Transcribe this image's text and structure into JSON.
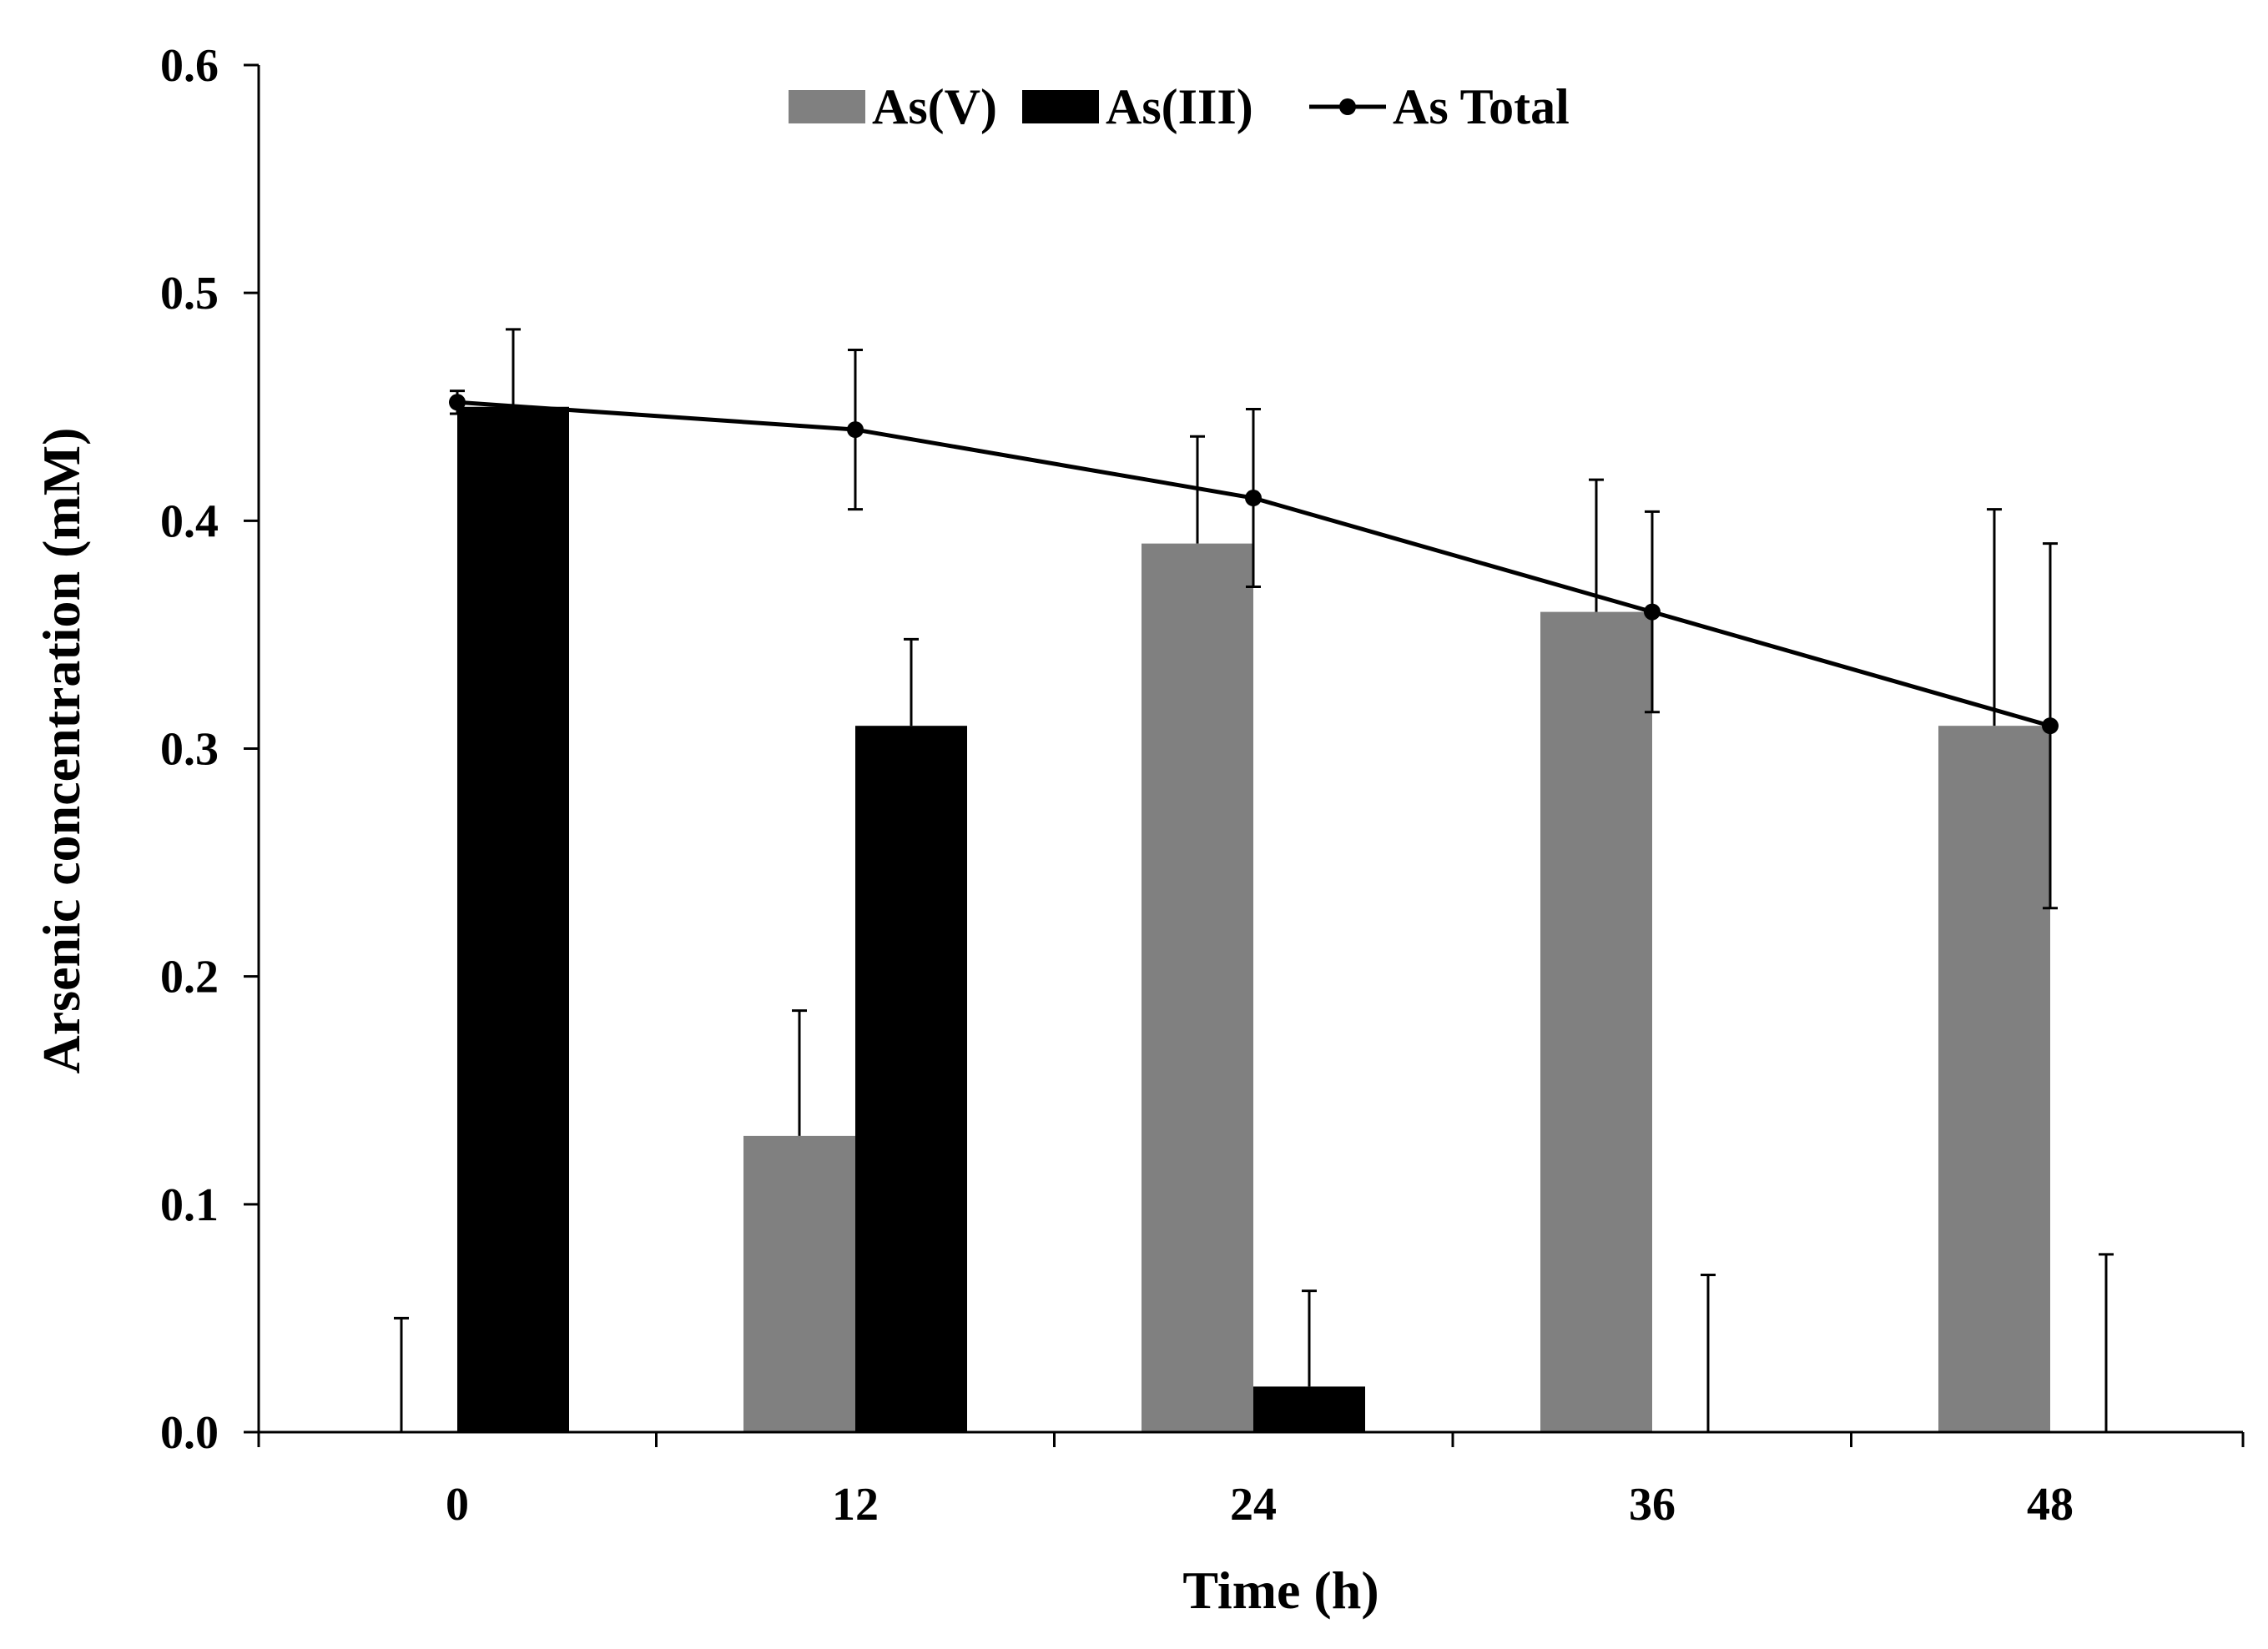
{
  "chart_data": {
    "type": "bar",
    "title": "",
    "xlabel": "Time (h)",
    "ylabel": "Arsenic concentration (mM)",
    "ylim": [
      0,
      0.6
    ],
    "yticks": [
      "0.0",
      "0.1",
      "0.2",
      "0.3",
      "0.4",
      "0.5",
      "0.6"
    ],
    "categories": [
      "0",
      "12",
      "24",
      "36",
      "48"
    ],
    "legend_position": "top-center",
    "series": [
      {
        "name": "As(V)",
        "kind": "bar",
        "color": "#808080",
        "values": [
          0.0,
          0.13,
          0.39,
          0.36,
          0.31
        ],
        "errors": [
          0.05,
          0.055,
          0.047,
          0.058,
          0.095
        ]
      },
      {
        "name": "As(III)",
        "kind": "bar",
        "color": "#000000",
        "values": [
          0.45,
          0.31,
          0.02,
          0.0,
          0.0
        ],
        "errors": [
          0.034,
          0.038,
          0.042,
          0.069,
          0.078
        ]
      },
      {
        "name": "As Total",
        "kind": "line",
        "color": "#000000",
        "values": [
          0.452,
          0.44,
          0.41,
          0.36,
          0.31
        ],
        "errors": [
          0.005,
          0.035,
          0.039,
          0.044,
          0.08
        ]
      }
    ]
  }
}
